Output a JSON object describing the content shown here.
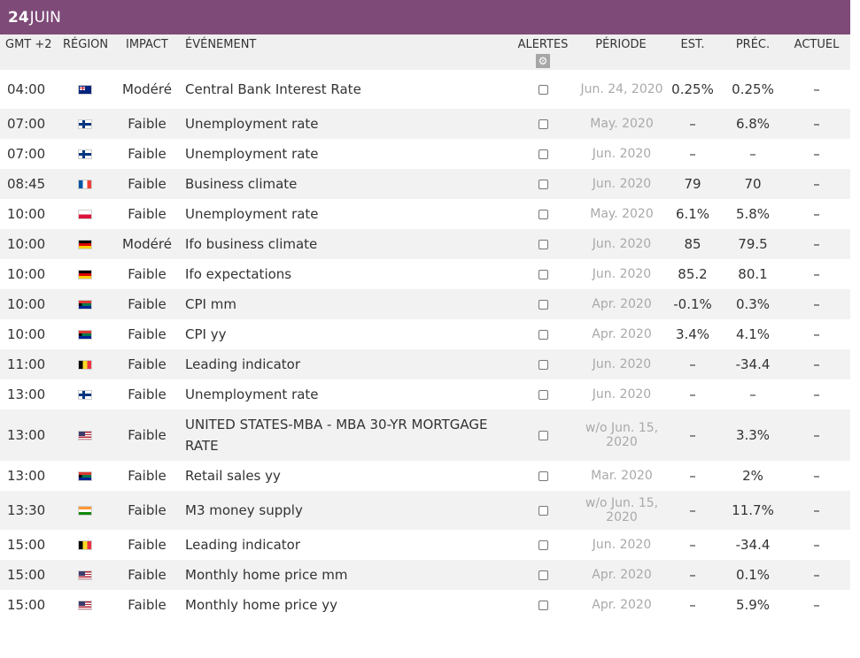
{
  "header": {
    "day": "24",
    "month": "JUIN"
  },
  "columns": {
    "time": "GMT +2",
    "region": "RÉGION",
    "impact": "IMPACT",
    "event": "ÉVÉNEMENT",
    "alerts": "ALERTES",
    "alerts_icon": "gear-icon",
    "period": "PÉRIODE",
    "est": "EST.",
    "prev": "PRÉC.",
    "actual": "ACTUEL"
  },
  "rows": [
    {
      "time": "04:00",
      "flag": "au",
      "region_icon": "flag-new-zealand-icon",
      "impact": "Modéré",
      "event": "Central Bank Interest Rate",
      "period": "Jun. 24, 2020",
      "est": "0.25%",
      "prev": "0.25%",
      "actual": "–"
    },
    {
      "time": "07:00",
      "flag": "fi",
      "region_icon": "flag-finland-icon",
      "impact": "Faible",
      "event": "Unemployment rate",
      "period": "May. 2020",
      "est": "–",
      "prev": "6.8%",
      "actual": "–"
    },
    {
      "time": "07:00",
      "flag": "fi",
      "region_icon": "flag-finland-icon",
      "impact": "Faible",
      "event": "Unemployment rate",
      "period": "Jun. 2020",
      "est": "–",
      "prev": "–",
      "actual": "–"
    },
    {
      "time": "08:45",
      "flag": "fr",
      "region_icon": "flag-france-icon",
      "impact": "Faible",
      "event": "Business climate",
      "period": "Jun. 2020",
      "est": "79",
      "prev": "70",
      "actual": "–"
    },
    {
      "time": "10:00",
      "flag": "pl",
      "region_icon": "flag-poland-icon",
      "impact": "Faible",
      "event": "Unemployment rate",
      "period": "May. 2020",
      "est": "6.1%",
      "prev": "5.8%",
      "actual": "–"
    },
    {
      "time": "10:00",
      "flag": "de",
      "region_icon": "flag-germany-icon",
      "impact": "Modéré",
      "event": "Ifo business climate",
      "period": "Jun. 2020",
      "est": "85",
      "prev": "79.5",
      "actual": "–"
    },
    {
      "time": "10:00",
      "flag": "de",
      "region_icon": "flag-germany-icon",
      "impact": "Faible",
      "event": "Ifo expectations",
      "period": "Jun. 2020",
      "est": "85.2",
      "prev": "80.1",
      "actual": "–"
    },
    {
      "time": "10:00",
      "flag": "za",
      "region_icon": "flag-south-africa-icon",
      "impact": "Faible",
      "event": "CPI mm",
      "period": "Apr. 2020",
      "est": "-0.1%",
      "prev": "0.3%",
      "actual": "–"
    },
    {
      "time": "10:00",
      "flag": "za",
      "region_icon": "flag-south-africa-icon",
      "impact": "Faible",
      "event": "CPI yy",
      "period": "Apr. 2020",
      "est": "3.4%",
      "prev": "4.1%",
      "actual": "–"
    },
    {
      "time": "11:00",
      "flag": "be",
      "region_icon": "flag-belgium-icon",
      "impact": "Faible",
      "event": "Leading indicator",
      "period": "Jun. 2020",
      "est": "–",
      "prev": "-34.4",
      "actual": "–"
    },
    {
      "time": "13:00",
      "flag": "fi",
      "region_icon": "flag-finland-icon",
      "impact": "Faible",
      "event": "Unemployment rate",
      "period": "Jun. 2020",
      "est": "–",
      "prev": "–",
      "actual": "–"
    },
    {
      "time": "13:00",
      "flag": "us",
      "region_icon": "flag-united-states-icon",
      "impact": "Faible",
      "event": "UNITED STATES-MBA - MBA 30-YR MORTGAGE RATE",
      "period": "w/o Jun. 15, 2020",
      "est": "–",
      "prev": "3.3%",
      "actual": "–"
    },
    {
      "time": "13:00",
      "flag": "za",
      "region_icon": "flag-south-africa-icon",
      "impact": "Faible",
      "event": "Retail sales yy",
      "period": "Mar. 2020",
      "est": "–",
      "prev": "2%",
      "actual": "–"
    },
    {
      "time": "13:30",
      "flag": "in",
      "region_icon": "flag-india-icon",
      "impact": "Faible",
      "event": "M3 money supply",
      "period": "w/o Jun. 15, 2020",
      "est": "–",
      "prev": "11.7%",
      "actual": "–"
    },
    {
      "time": "15:00",
      "flag": "be",
      "region_icon": "flag-belgium-icon",
      "impact": "Faible",
      "event": "Leading indicator",
      "period": "Jun. 2020",
      "est": "–",
      "prev": "-34.4",
      "actual": "–"
    },
    {
      "time": "15:00",
      "flag": "us",
      "region_icon": "flag-united-states-icon",
      "impact": "Faible",
      "event": "Monthly home price mm",
      "period": "Apr. 2020",
      "est": "–",
      "prev": "0.1%",
      "actual": "–"
    },
    {
      "time": "15:00",
      "flag": "us",
      "region_icon": "flag-united-states-icon",
      "impact": "Faible",
      "event": "Monthly home price yy",
      "period": "Apr. 2020",
      "est": "–",
      "prev": "5.9%",
      "actual": "–"
    }
  ]
}
